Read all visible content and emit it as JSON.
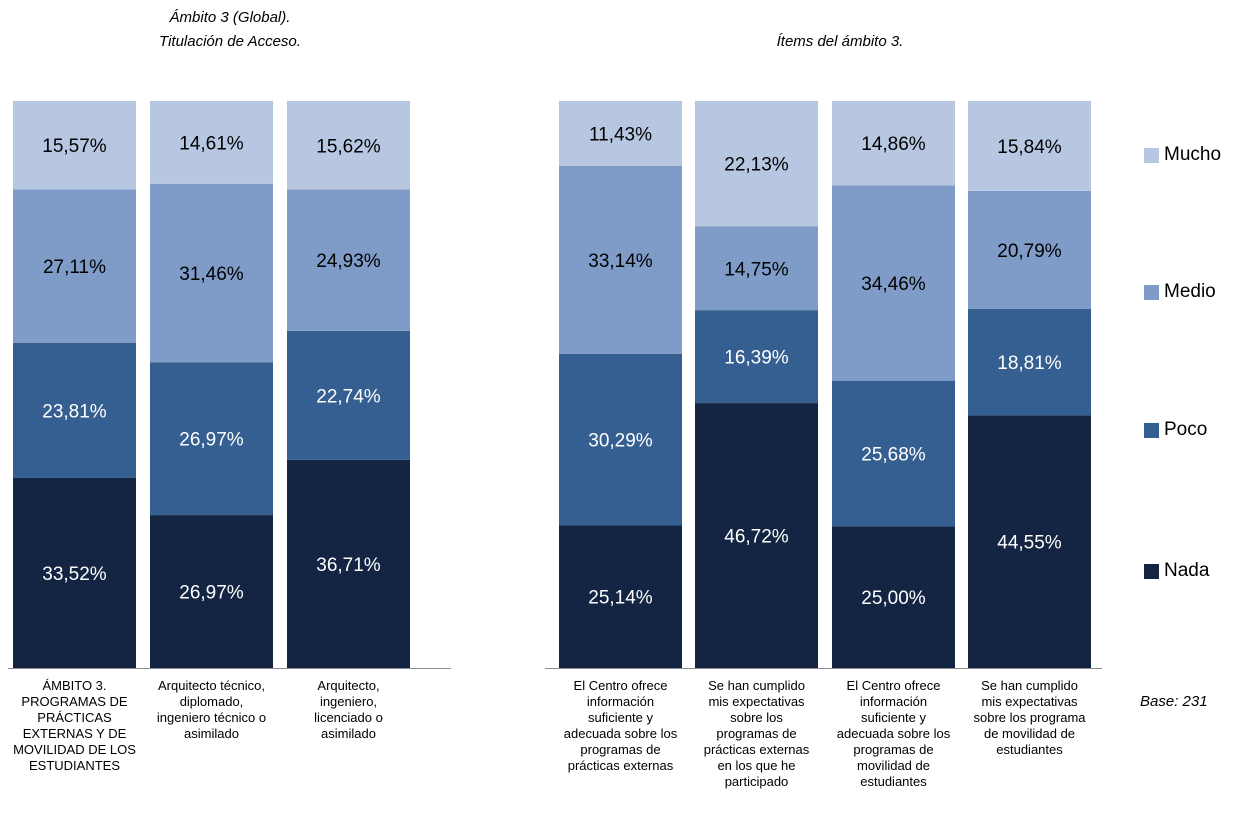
{
  "titles": {
    "left": [
      "Ámbito 3 (Global).",
      "Titulación de Acceso."
    ],
    "right": "Ítems del ámbito 3."
  },
  "base_note": "Base: 231",
  "colors": {
    "Nada": "#132542",
    "Poco": "#365f91",
    "Medio": "#7e9cc7",
    "Mucho": "#b8c7e1"
  },
  "legend": [
    "Mucho",
    "Medio",
    "Poco",
    "Nada"
  ],
  "chart_data": {
    "type": "bar",
    "stacked": true,
    "normalized": true,
    "legend_position": "right",
    "categories": [
      [
        "ÁMBITO 3.",
        "PROGRAMAS DE",
        "PRÁCTICAS",
        "EXTERNAS Y DE",
        "MOVILIDAD DE LOS",
        "ESTUDIANTES"
      ],
      [
        "Arquitecto técnico,",
        "diplomado,",
        "ingeniero técnico o",
        "asimilado"
      ],
      [
        "Arquitecto,",
        "ingeniero,",
        "licenciado o",
        "asimilado"
      ],
      [
        "El Centro ofrece",
        "información",
        "suficiente y",
        "adecuada sobre los",
        "programas de",
        "prácticas externas"
      ],
      [
        "Se han cumplido",
        "mis expectativas",
        "sobre los",
        "programas  de",
        "prácticas externas",
        "en los que he",
        "participado"
      ],
      [
        "El Centro ofrece",
        "información",
        "suficiente y",
        "adecuada sobre los",
        "programas de",
        "movilidad de",
        "estudiantes"
      ],
      [
        "Se han cumplido",
        "mis expectativas",
        "sobre los programa",
        "de movilidad de",
        "estudiantes"
      ]
    ],
    "series": [
      {
        "name": "Nada",
        "values": [
          33.52,
          26.97,
          36.71,
          25.14,
          46.72,
          25.0,
          44.55
        ],
        "labels": [
          "33,52%",
          "26,97%",
          "36,71%",
          "25,14%",
          "46,72%",
          "25,00%",
          "44,55%"
        ]
      },
      {
        "name": "Poco",
        "values": [
          23.81,
          26.97,
          22.74,
          30.29,
          16.39,
          25.68,
          18.81
        ],
        "labels": [
          "23,81%",
          "26,97%",
          "22,74%",
          "30,29%",
          "16,39%",
          "25,68%",
          "18,81%"
        ]
      },
      {
        "name": "Medio",
        "values": [
          27.11,
          31.46,
          24.93,
          33.14,
          14.75,
          34.46,
          20.79
        ],
        "labels": [
          "27,11%",
          "31,46%",
          "24,93%",
          "33,14%",
          "14,75%",
          "34,46%",
          "20,79%"
        ]
      },
      {
        "name": "Mucho",
        "values": [
          15.57,
          14.61,
          15.62,
          11.43,
          22.13,
          14.86,
          15.84
        ],
        "labels": [
          "15,57%",
          "14,61%",
          "15,62%",
          "11,43%",
          "22,13%",
          "14,86%",
          "15,84%"
        ]
      }
    ]
  }
}
